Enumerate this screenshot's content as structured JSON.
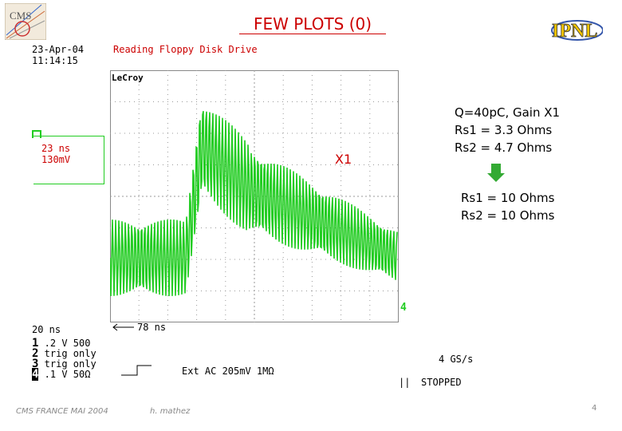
{
  "slide": {
    "title": "FEW PLOTS (0)",
    "page_number": "4"
  },
  "logos": {
    "left": "CMS",
    "right": "IPNL"
  },
  "scope": {
    "brand": "LeCroy",
    "date": "23-Apr-04",
    "time": "11:14:15",
    "status_line": "Reading Floppy Disk Drive",
    "trace_label": "X1",
    "channel_box": [
      "23 ns",
      "130mV"
    ],
    "timebase_left": "20 ns",
    "timebase_arrow": "78 ns",
    "channels": [
      {
        "num": "1",
        "text": ".2   V  500"
      },
      {
        "num": "2",
        "text": "trig only"
      },
      {
        "num": "3",
        "text": "trig only"
      },
      {
        "num": "4",
        "text": ".1   V  50Ω"
      }
    ],
    "trigger_text": "Ext AC 205mV 1MΩ",
    "sample_rate": "4 GS/s",
    "state": "STOPPED",
    "trace_end_marker": "4",
    "trace_start_marker": "4"
  },
  "notes": {
    "before": [
      "Q=40pC, Gain X1",
      "Rs1 = 3.3 Ohms",
      "Rs2 = 4.7 Ohms"
    ],
    "after": [
      "Rs1 = 10 Ohms",
      "Rs2 = 10 Ohms"
    ],
    "arrow_color": "#33aa33"
  },
  "footer": {
    "left": "CMS FRANCE MAI 2004",
    "author": "h. mathez"
  },
  "colors": {
    "trace": "#22cc22",
    "title": "#cc0000",
    "grid": "#999999"
  }
}
